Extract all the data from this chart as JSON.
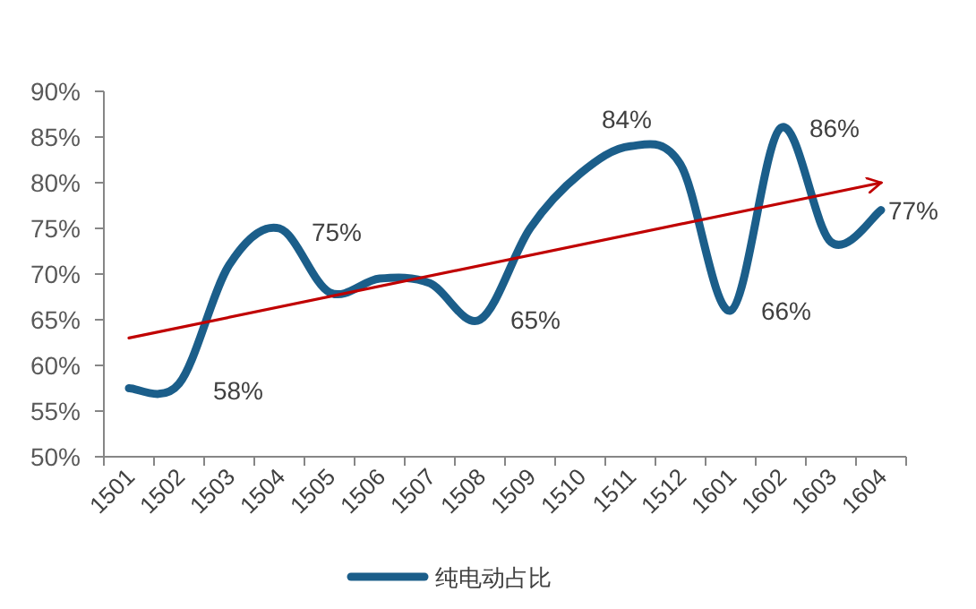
{
  "chart_data": {
    "type": "line",
    "categories": [
      "1501",
      "1502",
      "1503",
      "1504",
      "1505",
      "1506",
      "1507",
      "1508",
      "1509",
      "1510",
      "1511",
      "1512",
      "1601",
      "1602",
      "1603",
      "1604"
    ],
    "series": [
      {
        "name": "纯电动占比",
        "color": "#1b5e8a",
        "values": [
          57.5,
          58,
          71,
          75,
          68,
          69.5,
          69,
          65,
          75,
          81,
          84,
          82,
          66,
          86,
          73.5,
          77
        ]
      },
      {
        "type": "line",
        "color": "#c00000",
        "values": [
          63,
          null,
          null,
          null,
          null,
          null,
          null,
          null,
          null,
          null,
          null,
          null,
          null,
          null,
          null,
          80
        ]
      }
    ],
    "ylim": [
      50,
      90
    ],
    "yticks": [
      {
        "value": 50,
        "label": "50%"
      },
      {
        "value": 55,
        "label": "55%"
      },
      {
        "value": 60,
        "label": "60%"
      },
      {
        "value": 65,
        "label": "65%"
      },
      {
        "value": 70,
        "label": "70%"
      },
      {
        "value": 75,
        "label": "75%"
      },
      {
        "value": 80,
        "label": "80%"
      },
      {
        "value": 85,
        "label": "85%"
      },
      {
        "value": 90,
        "label": "90%"
      }
    ],
    "annotations": [
      {
        "text": "58%",
        "x": "1502",
        "y": 58
      },
      {
        "text": "75%",
        "x": "1504",
        "y": 75
      },
      {
        "text": "65%",
        "x": "1508",
        "y": 65
      },
      {
        "text": "84%",
        "x": "1511",
        "y": 84
      },
      {
        "text": "66%",
        "x": "1601",
        "y": 66
      },
      {
        "text": "86%",
        "x": "1602",
        "y": 86
      },
      {
        "text": "77%",
        "x": "1604",
        "y": 77
      }
    ],
    "legend": "bottom",
    "grid": false,
    "marker": "none"
  }
}
